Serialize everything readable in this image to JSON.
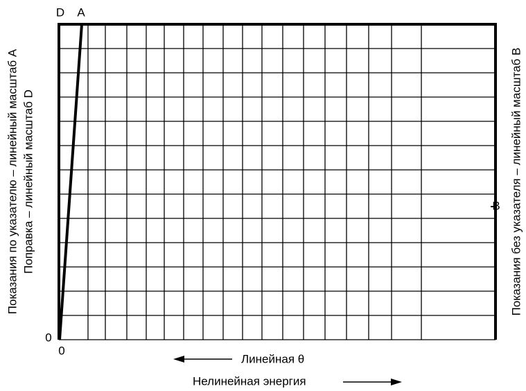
{
  "labels": {
    "top_left_d": "D",
    "top_left_a": "A",
    "origin_left": "0",
    "origin_bottom": "0",
    "right_b": "B"
  },
  "axes": {
    "left_line1": "Показания по указателю – линейный масштаб A",
    "left_line2": "Поправка – линейный масштаб D",
    "right": "Показания без указателя – линейный масштаб B",
    "bottom_linear": "Линейная θ",
    "bottom_nonlinear": "Нелинейная энергия"
  }
}
